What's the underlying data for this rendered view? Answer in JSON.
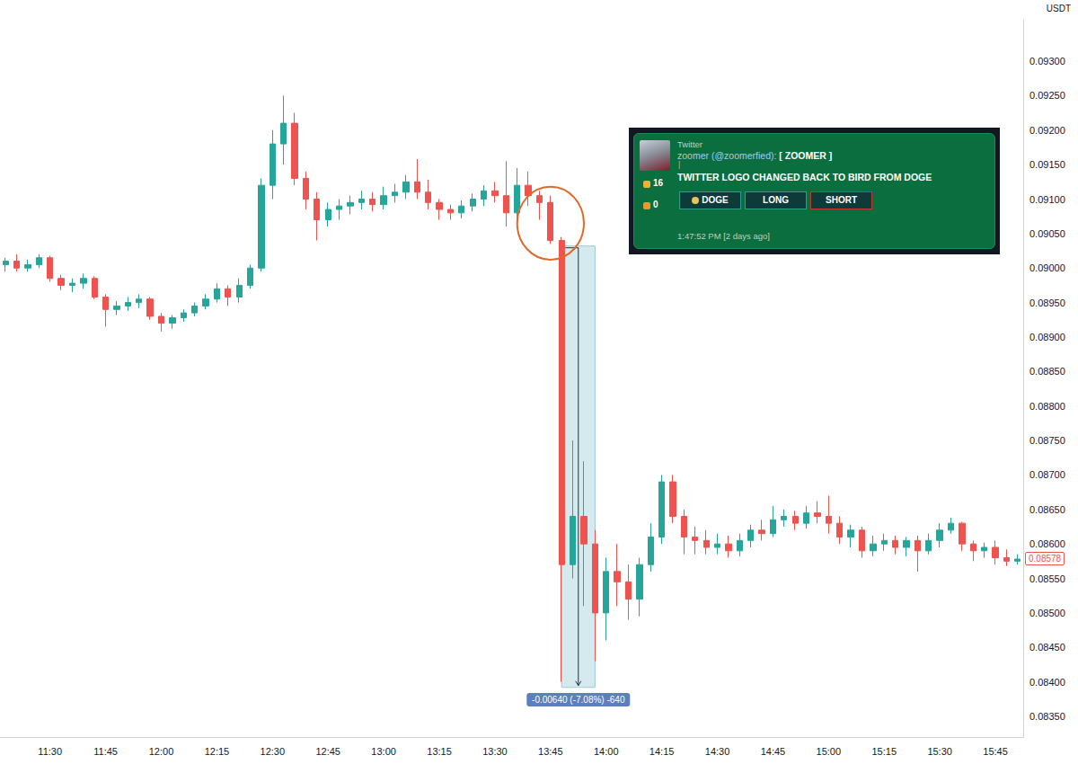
{
  "chart_data": {
    "type": "candlestick",
    "y_unit": "USDT",
    "grid": false,
    "color": {
      "up": "#26a69a",
      "down": "#ef5350"
    },
    "categories": [
      null,
      null,
      null,
      null,
      "11:30",
      null,
      null,
      null,
      null,
      "11:45",
      null,
      null,
      null,
      null,
      "12:00",
      null,
      null,
      null,
      null,
      "12:15",
      null,
      null,
      null,
      null,
      "12:30",
      null,
      null,
      null,
      null,
      "12:45",
      null,
      null,
      null,
      null,
      "13:00",
      null,
      null,
      null,
      null,
      "13:15",
      null,
      null,
      null,
      null,
      "13:30",
      null,
      null,
      null,
      null,
      "13:45",
      null,
      null,
      null,
      null,
      "14:00",
      null,
      null,
      null,
      null,
      "14:15",
      null,
      null,
      null,
      null,
      "14:30",
      null,
      null,
      null,
      null,
      "14:45",
      null,
      null,
      null,
      null,
      "15:00",
      null,
      null,
      null,
      null,
      "15:15",
      null,
      null,
      null,
      null,
      "15:30",
      null,
      null,
      null,
      null,
      "15:45",
      null,
      null
    ],
    "open": [
      0.09005,
      0.0901,
      0.09,
      0.09005,
      0.09015,
      0.08985,
      0.08975,
      0.08978,
      0.08985,
      0.08958,
      0.0894,
      0.08945,
      0.0895,
      0.08955,
      0.0893,
      0.0892,
      0.08928,
      0.08935,
      0.08945,
      0.08955,
      0.0897,
      0.08958,
      0.08975,
      0.09,
      0.0912,
      0.0918,
      0.0921,
      0.0913,
      0.091,
      0.0907,
      0.09085,
      0.0909,
      0.09095,
      0.091,
      0.09092,
      0.09105,
      0.0911,
      0.09125,
      0.0911,
      0.09095,
      0.09085,
      0.0908,
      0.0909,
      0.091,
      0.09112,
      0.09105,
      0.0908,
      0.0912,
      0.09105,
      0.09095,
      0.0904,
      0.0857,
      0.0864,
      0.086,
      0.085,
      0.0856,
      0.08545,
      0.0852,
      0.0857,
      0.0861,
      0.0869,
      0.0864,
      0.0861,
      0.08605,
      0.08595,
      0.086,
      0.0859,
      0.08605,
      0.0862,
      0.08615,
      0.08635,
      0.0864,
      0.0863,
      0.08645,
      0.0864,
      0.0863,
      0.0861,
      0.0862,
      0.0859,
      0.086,
      0.08605,
      0.08595,
      0.08605,
      0.0859,
      0.08605,
      0.0862,
      0.0863,
      0.086,
      0.0859,
      0.08595,
      0.0858,
      0.08575
    ],
    "close": [
      0.0901,
      0.09,
      0.09005,
      0.09015,
      0.08985,
      0.08975,
      0.08978,
      0.08985,
      0.08958,
      0.0894,
      0.08945,
      0.0895,
      0.08955,
      0.0893,
      0.0892,
      0.08928,
      0.08935,
      0.08945,
      0.08955,
      0.0897,
      0.08958,
      0.08975,
      0.09,
      0.0912,
      0.0918,
      0.0921,
      0.0913,
      0.091,
      0.0907,
      0.09085,
      0.0909,
      0.09095,
      0.091,
      0.09092,
      0.09105,
      0.0911,
      0.09125,
      0.0911,
      0.09095,
      0.09085,
      0.0908,
      0.0909,
      0.091,
      0.09112,
      0.09105,
      0.0908,
      0.0912,
      0.09105,
      0.09095,
      0.0904,
      0.0857,
      0.0864,
      0.086,
      0.085,
      0.0856,
      0.08545,
      0.0852,
      0.0857,
      0.0861,
      0.0869,
      0.0864,
      0.0861,
      0.08605,
      0.08595,
      0.086,
      0.0859,
      0.08605,
      0.0862,
      0.08615,
      0.08635,
      0.0864,
      0.0863,
      0.08645,
      0.0864,
      0.0863,
      0.0861,
      0.0862,
      0.0859,
      0.086,
      0.08605,
      0.08595,
      0.08605,
      0.0859,
      0.08605,
      0.0862,
      0.0863,
      0.086,
      0.0859,
      0.08595,
      0.0858,
      0.08575,
      0.08578
    ],
    "low": [
      0.08995,
      0.08995,
      0.08995,
      0.09,
      0.0898,
      0.08968,
      0.08965,
      0.0897,
      0.08955,
      0.08915,
      0.08932,
      0.08938,
      0.08942,
      0.08925,
      0.08908,
      0.08912,
      0.08922,
      0.0893,
      0.0894,
      0.0895,
      0.08945,
      0.0895,
      0.0897,
      0.08995,
      0.091,
      0.0915,
      0.0912,
      0.09085,
      0.0904,
      0.0906,
      0.0907,
      0.09078,
      0.09085,
      0.09082,
      0.09085,
      0.09095,
      0.091,
      0.091,
      0.09085,
      0.0907,
      0.0907,
      0.09072,
      0.09082,
      0.0909,
      0.09095,
      0.0906,
      0.09065,
      0.0909,
      0.0907,
      0.09035,
      0.084,
      0.0855,
      0.0851,
      0.0843,
      0.0846,
      0.0851,
      0.0849,
      0.08495,
      0.0856,
      0.086,
      0.0863,
      0.08585,
      0.08585,
      0.08585,
      0.08585,
      0.0858,
      0.08582,
      0.08595,
      0.08605,
      0.0861,
      0.08625,
      0.0862,
      0.08622,
      0.0863,
      0.08615,
      0.086,
      0.08595,
      0.0858,
      0.08582,
      0.0859,
      0.08585,
      0.08582,
      0.0856,
      0.08585,
      0.08595,
      0.08615,
      0.0859,
      0.08575,
      0.0858,
      0.0857,
      0.08568,
      0.0857
    ],
    "high": [
      0.09015,
      0.0902,
      0.09012,
      0.0902,
      0.09018,
      0.0899,
      0.08985,
      0.08992,
      0.08988,
      0.08962,
      0.08952,
      0.08958,
      0.08962,
      0.08958,
      0.08935,
      0.08932,
      0.0894,
      0.0895,
      0.08962,
      0.08978,
      0.08975,
      0.08985,
      0.09005,
      0.0913,
      0.092,
      0.0925,
      0.09225,
      0.0914,
      0.0911,
      0.09095,
      0.091,
      0.09105,
      0.09112,
      0.0911,
      0.09118,
      0.09122,
      0.09135,
      0.09158,
      0.09128,
      0.091,
      0.09092,
      0.09098,
      0.09108,
      0.0912,
      0.09125,
      0.09155,
      0.09145,
      0.0914,
      0.09112,
      0.09105,
      0.09045,
      0.0875,
      0.0872,
      0.0862,
      0.0858,
      0.086,
      0.0857,
      0.0858,
      0.0863,
      0.087,
      0.087,
      0.0865,
      0.08625,
      0.0862,
      0.08615,
      0.08612,
      0.08615,
      0.08628,
      0.08635,
      0.08655,
      0.0865,
      0.08648,
      0.08655,
      0.08662,
      0.0867,
      0.0864,
      0.08628,
      0.08625,
      0.08612,
      0.08615,
      0.08612,
      0.0861,
      0.08612,
      0.08615,
      0.0863,
      0.08638,
      0.08632,
      0.08605,
      0.08602,
      0.08605,
      0.08592,
      0.08585
    ],
    "ylim": [
      0.0832,
      0.0936
    ],
    "yticks": [
      {
        "value": 0.0835,
        "label": "0.08350"
      },
      {
        "value": 0.084,
        "label": "0.08400"
      },
      {
        "value": 0.0845,
        "label": "0.08450"
      },
      {
        "value": 0.085,
        "label": "0.08500"
      },
      {
        "value": 0.0855,
        "label": "0.08550"
      },
      {
        "value": 0.086,
        "label": "0.08600"
      },
      {
        "value": 0.0865,
        "label": "0.08650"
      },
      {
        "value": 0.087,
        "label": "0.08700"
      },
      {
        "value": 0.0875,
        "label": "0.08750"
      },
      {
        "value": 0.088,
        "label": "0.08800"
      },
      {
        "value": 0.0885,
        "label": "0.08850"
      },
      {
        "value": 0.089,
        "label": "0.08900"
      },
      {
        "value": 0.0895,
        "label": "0.08950"
      },
      {
        "value": 0.09,
        "label": "0.09000"
      },
      {
        "value": 0.0905,
        "label": "0.09050"
      },
      {
        "value": 0.091,
        "label": "0.09100"
      },
      {
        "value": 0.0915,
        "label": "0.09150"
      },
      {
        "value": 0.092,
        "label": "0.09200"
      },
      {
        "value": 0.0925,
        "label": "0.09250"
      },
      {
        "value": 0.093,
        "label": "0.09300"
      }
    ],
    "last_price": {
      "value": 0.08578,
      "label": "0.08578"
    },
    "measure": {
      "x_range": [
        50,
        53
      ],
      "y_range": [
        0.09032,
        0.08392
      ],
      "label": "-0.00640 (-7.08%) -640"
    },
    "circle": {
      "x_range": [
        46,
        52
      ],
      "y_range": [
        0.0911,
        0.0902
      ]
    },
    "tweet": {
      "source": "Twitter",
      "author": "zoomer (@zoomerfied):",
      "tag": "[ ZOOMER ]",
      "separator": "|",
      "text": "TWITTER LOGO CHANGED BACK TO BIRD FROM DOGE",
      "likes": 16,
      "dislikes": 0,
      "buttons": [
        "DOGE",
        "LONG",
        "SHORT"
      ],
      "time": "1:47:52 PM [2 days ago]"
    }
  }
}
